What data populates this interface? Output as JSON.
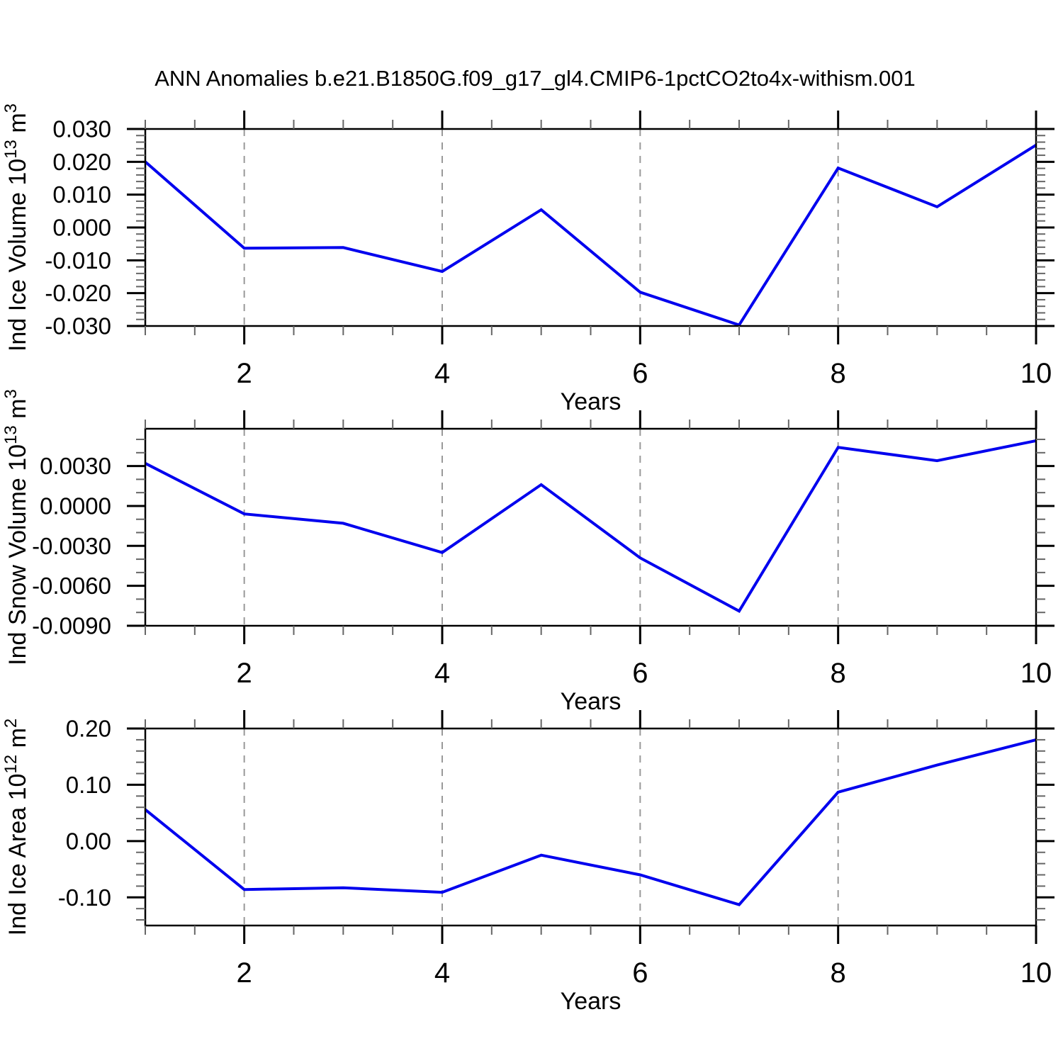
{
  "title": "ANN Anomalies b.e21.B1850G.f09_g17_gl4.CMIP6-1pctCO2to4x-withism.001",
  "colors": {
    "line": "#0000ee",
    "axis": "#000000",
    "minor_tick": "#666666",
    "grid": "#999999",
    "text": "#000000",
    "background": "#ffffff"
  },
  "chart_data": [
    {
      "type": "line",
      "name": "ind-ice-volume",
      "ylabel": "Ind Ice Volume 10^13 m^3",
      "ylabel_parts": [
        {
          "t": "Ind Ice Volume 10"
        },
        {
          "t": "13",
          "sup": true
        },
        {
          "t": " m"
        },
        {
          "t": "3",
          "sup": true
        }
      ],
      "xlabel": "Years",
      "x": [
        1,
        2,
        3,
        4,
        5,
        6,
        7,
        8,
        9,
        10
      ],
      "values": [
        0.02,
        -0.0063,
        -0.0061,
        -0.0134,
        0.0054,
        -0.0197,
        -0.0297,
        0.0181,
        0.0063,
        0.0251
      ],
      "xlim": [
        1,
        10
      ],
      "ylim": [
        -0.03,
        0.03
      ],
      "xtick_major": [
        2,
        4,
        6,
        8,
        10
      ],
      "xtick_labels": [
        "2",
        "4",
        "6",
        "8",
        "10"
      ],
      "xtick_minor_step": 0.5,
      "ytick_major": [
        0.03,
        0.02,
        0.01,
        0.0,
        -0.01,
        -0.02,
        -0.03
      ],
      "ytick_labels": [
        "0.030",
        "0.020",
        "0.010",
        "0.000",
        "-0.010",
        "-0.020",
        "-0.030"
      ],
      "ytick_minor_step": 0.002,
      "grid_x": [
        2,
        4,
        6,
        8
      ],
      "grid_on": "vertical-dashed-only"
    },
    {
      "type": "line",
      "name": "ind-snow-volume",
      "ylabel": "Ind Snow Volume 10^13 m^3",
      "ylabel_parts": [
        {
          "t": "Ind Snow Volume 10"
        },
        {
          "t": "13",
          "sup": true
        },
        {
          "t": " m"
        },
        {
          "t": "3",
          "sup": true
        }
      ],
      "xlabel": "Years",
      "x": [
        1,
        2,
        3,
        4,
        5,
        6,
        7,
        8,
        9,
        10
      ],
      "values": [
        0.0032,
        -0.0006,
        -0.0013,
        -0.0035,
        0.0016,
        -0.0039,
        -0.0079,
        0.0044,
        0.0034,
        0.0049
      ],
      "xlim": [
        1,
        10
      ],
      "ylim": [
        -0.009,
        0.0058
      ],
      "xtick_major": [
        2,
        4,
        6,
        8,
        10
      ],
      "xtick_labels": [
        "2",
        "4",
        "6",
        "8",
        "10"
      ],
      "xtick_minor_step": 0.5,
      "ytick_major": [
        0.003,
        0.0,
        -0.003,
        -0.006,
        -0.009
      ],
      "ytick_labels": [
        "0.0030",
        "0.0000",
        "-0.0030",
        "-0.0060",
        "-0.0090"
      ],
      "ytick_minor_step": 0.001,
      "grid_x": [
        2,
        4,
        6,
        8
      ],
      "grid_on": "vertical-dashed-only"
    },
    {
      "type": "line",
      "name": "ind-ice-area",
      "ylabel": "Ind Ice Area 10^12 m^2",
      "ylabel_parts": [
        {
          "t": "Ind Ice Area 10"
        },
        {
          "t": "12",
          "sup": true
        },
        {
          "t": " m"
        },
        {
          "t": "2",
          "sup": true
        }
      ],
      "xlabel": "Years",
      "x": [
        1,
        2,
        3,
        4,
        5,
        6,
        7,
        8,
        9,
        10
      ],
      "values": [
        0.056,
        -0.086,
        -0.083,
        -0.091,
        -0.025,
        -0.06,
        -0.113,
        0.087,
        0.135,
        0.18
      ],
      "xlim": [
        1,
        10
      ],
      "ylim": [
        -0.15,
        0.2
      ],
      "xtick_major": [
        2,
        4,
        6,
        8,
        10
      ],
      "xtick_labels": [
        "2",
        "4",
        "6",
        "8",
        "10"
      ],
      "xtick_minor_step": 0.5,
      "ytick_major": [
        0.2,
        0.1,
        0.0,
        -0.1
      ],
      "ytick_labels": [
        "0.20",
        "0.10",
        "0.00",
        "-0.10"
      ],
      "ytick_minor_step": 0.02,
      "grid_x": [
        2,
        4,
        6,
        8
      ],
      "grid_on": "vertical-dashed-only"
    }
  ]
}
